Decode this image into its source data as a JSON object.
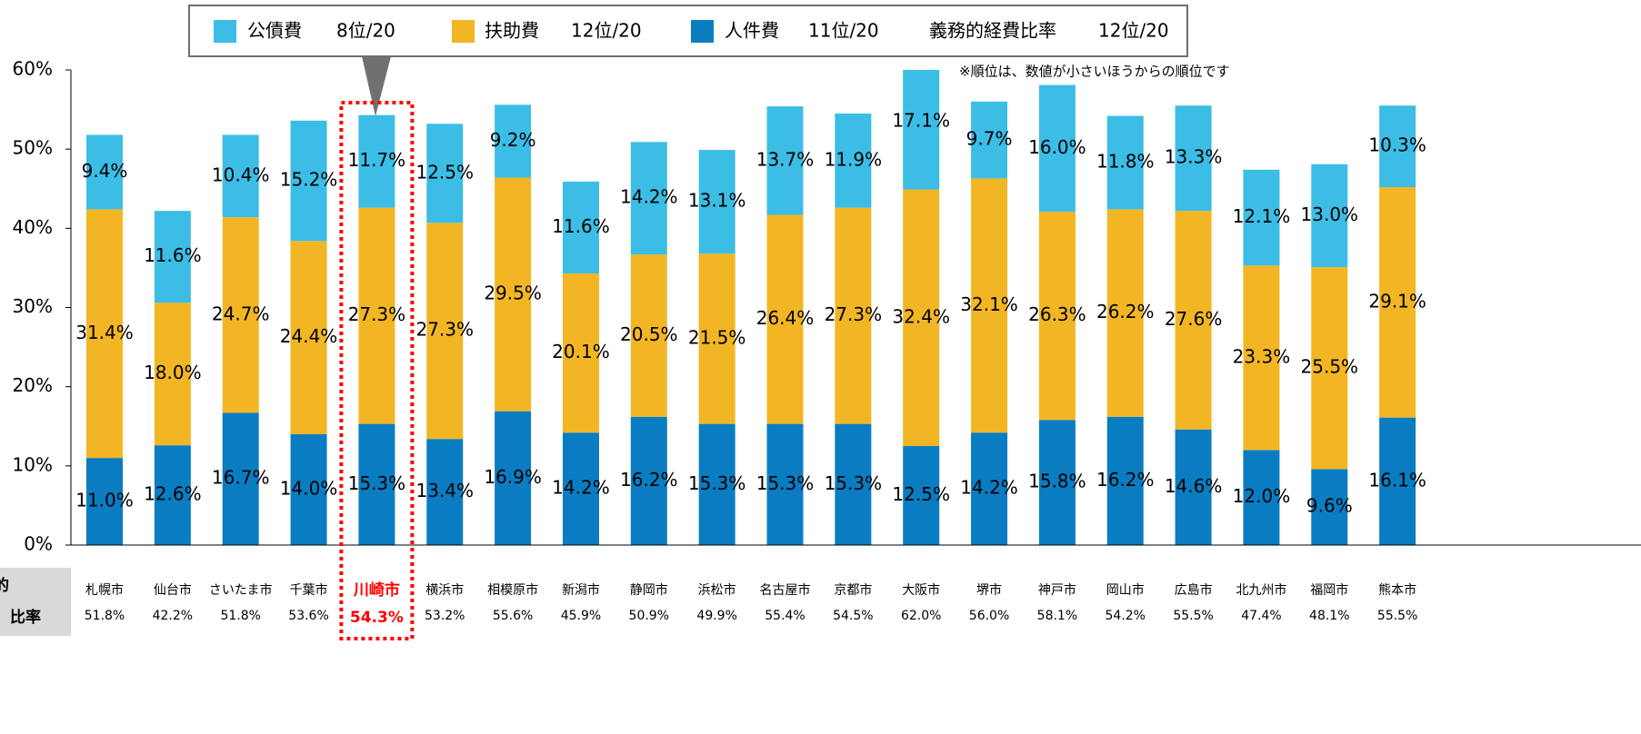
{
  "chart_data": {
    "type": "stacked_bar",
    "categories": [
      "札幌市",
      "仙台市",
      "さいたま市",
      "千葉市",
      "川崎市",
      "横浜市",
      "相模原市",
      "新潟市",
      "静岡市",
      "浜松市",
      "名古屋市",
      "京都市",
      "大阪市",
      "堺市",
      "神戸市",
      "岡山市",
      "広島市",
      "北九州市",
      "福岡市",
      "熊本市"
    ],
    "series": [
      {
        "name": "人件費",
        "rank": "11位/20",
        "color": "#0a7dc2",
        "values": [
          11.0,
          12.6,
          16.7,
          14.0,
          15.3,
          13.4,
          16.9,
          14.2,
          16.2,
          15.3,
          15.3,
          15.3,
          12.5,
          14.2,
          15.8,
          16.2,
          14.6,
          12.0,
          9.6,
          16.1
        ],
        "value_labels": [
          "11.0%",
          "12.6%",
          "16.7%",
          "14.0%",
          "15.3%",
          "13.4%",
          "16.9%",
          "14.2%",
          "16.2%",
          "15.3%",
          "15.3%",
          "15.3%",
          "12.5%",
          "14.2%",
          "15.8%",
          "16.2%",
          "14.6%",
          "12.0%",
          "9.6%",
          "16.1%"
        ]
      },
      {
        "name": "扶助費",
        "rank": "12位/20",
        "color": "#f2b624",
        "values": [
          31.4,
          18.0,
          24.7,
          24.4,
          27.3,
          27.3,
          29.5,
          20.1,
          20.5,
          21.5,
          26.4,
          27.3,
          32.4,
          32.1,
          26.3,
          26.2,
          27.6,
          23.3,
          25.5,
          29.1
        ],
        "value_labels": [
          "31.4%",
          "18.0%",
          "24.7%",
          "24.4%",
          "27.3%",
          "27.3%",
          "29.5%",
          "20.1%",
          "20.5%",
          "21.5%",
          "26.4%",
          "27.3%",
          "32.4%",
          "32.1%",
          "26.3%",
          "26.2%",
          "27.6%",
          "23.3%",
          "25.5%",
          "29.1%"
        ]
      },
      {
        "name": "公債費",
        "rank": "8位/20",
        "color": "#3cbde5",
        "values": [
          9.4,
          11.6,
          10.4,
          15.2,
          11.7,
          12.5,
          9.2,
          11.6,
          14.2,
          13.1,
          13.7,
          11.9,
          17.1,
          9.7,
          16.0,
          11.8,
          13.3,
          12.1,
          13.0,
          10.3
        ],
        "value_labels": [
          "9.4%",
          "11.6%",
          "10.4%",
          "15.2%",
          "11.7%",
          "12.5%",
          "9.2%",
          "11.6%",
          "14.2%",
          "13.1%",
          "13.7%",
          "11.9%",
          "17.1%",
          "9.7%",
          "16.0%",
          "11.8%",
          "13.3%",
          "12.1%",
          "13.0%",
          "10.3%"
        ]
      }
    ],
    "totals": {
      "values": [
        51.8,
        42.2,
        51.8,
        53.6,
        54.3,
        53.2,
        55.6,
        45.9,
        50.9,
        49.9,
        55.4,
        54.5,
        62.0,
        56.0,
        58.1,
        54.2,
        55.5,
        47.4,
        48.1,
        55.5
      ],
      "value_labels": [
        "51.8%",
        "42.2%",
        "51.8%",
        "53.6%",
        "54.3%",
        "53.2%",
        "55.6%",
        "45.9%",
        "50.9%",
        "49.9%",
        "55.4%",
        "54.5%",
        "62.0%",
        "56.0%",
        "58.1%",
        "54.2%",
        "55.5%",
        "47.4%",
        "48.1%",
        "55.5%"
      ]
    },
    "row_label": [
      "的",
      "比率"
    ],
    "ratio_rank_label": "義務的経費比率",
    "ratio_rank": "12位/20",
    "note": "※順位は、数値が小さいほうからの順位です",
    "highlight_index": 4,
    "ylim": [
      0,
      60
    ],
    "yticks": [
      {
        "value": 0,
        "label": "0%"
      },
      {
        "value": 10,
        "label": "10%"
      },
      {
        "value": 20,
        "label": "20%"
      },
      {
        "value": 30,
        "label": "30%"
      },
      {
        "value": 40,
        "label": "40%"
      },
      {
        "value": 50,
        "label": "50%"
      },
      {
        "value": 60,
        "label": "60%"
      }
    ]
  }
}
